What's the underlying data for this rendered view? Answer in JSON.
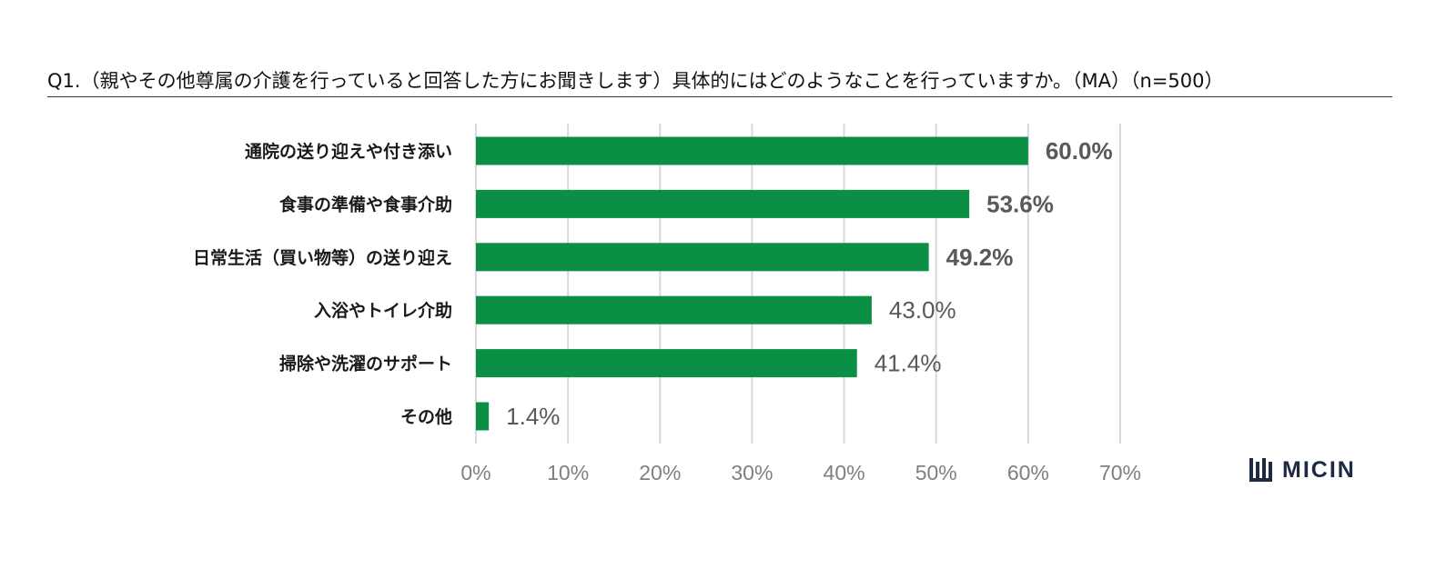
{
  "title": "Q1.（親やその他尊属の介護を行っていると回答した方にお聞きします）具体的にはどのようなことを行っていますか。（MA）（n=500）",
  "brand": {
    "name": "MICIN",
    "logo_icon": "micin-logo-icon",
    "color": "#1e2a44"
  },
  "chart_data": {
    "type": "bar",
    "orientation": "horizontal",
    "title": "Q1.（親やその他尊属の介護を行っていると回答した方にお聞きします）具体的にはどのようなことを行っていますか。（MA）（n=500）",
    "categories": [
      "通院の送り迎えや付き添い",
      "食事の準備や食事介助",
      "日常生活（買い物等）の送り迎え",
      "入浴やトイレ介助",
      "掃除や洗濯のサポート",
      "その他"
    ],
    "values": [
      60.0,
      53.6,
      49.2,
      43.0,
      41.4,
      1.4
    ],
    "value_labels": [
      "60.0%",
      "53.6%",
      "49.2%",
      "43.0%",
      "41.4%",
      "1.4%"
    ],
    "highlighted": [
      true,
      true,
      true,
      false,
      false,
      false
    ],
    "xlim": [
      0,
      70
    ],
    "x_ticks": [
      "0%",
      "10%",
      "20%",
      "30%",
      "40%",
      "50%",
      "60%",
      "70%"
    ],
    "xlabel": "",
    "ylabel": "",
    "grid": true,
    "bar_color": "#0a8f44",
    "grid_color": "#d9d9d9",
    "legend": "none"
  }
}
